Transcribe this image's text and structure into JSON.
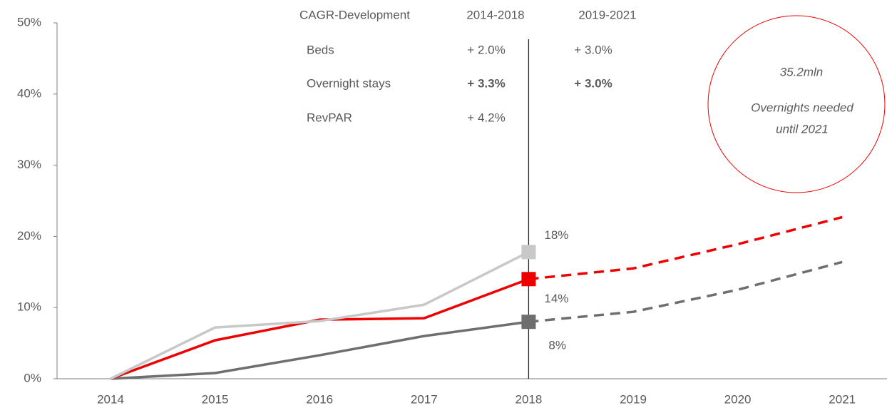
{
  "chart_data": {
    "type": "line",
    "categories": [
      "2014",
      "2015",
      "2016",
      "2017",
      "2018",
      "2019",
      "2020",
      "2021"
    ],
    "ylim": [
      0,
      50
    ],
    "yticks": [
      {
        "value": 0,
        "label": "0%"
      },
      {
        "value": 10,
        "label": "10%"
      },
      {
        "value": 20,
        "label": "20%"
      },
      {
        "value": 30,
        "label": "30%"
      },
      {
        "value": 40,
        "label": "40%"
      },
      {
        "value": 50,
        "label": "50%"
      }
    ],
    "dashed_from": "2018",
    "marker_at": "2018",
    "cagr_header": [
      "CAGR-Development",
      "2014-2018",
      "2019-2021"
    ],
    "series": [
      {
        "name": "Beds",
        "color": "#6e6e6e",
        "text_color": "#404040",
        "values": [
          0,
          0.8,
          3.3,
          6.0,
          8.0,
          9.4,
          12.5,
          16.4
        ],
        "value_labels": [
          null,
          null,
          null,
          null,
          "8%",
          null,
          null,
          null
        ],
        "cagr": [
          "+ 2.0%",
          "+ 3.0%"
        ]
      },
      {
        "name": "Overnight stays",
        "color": "#ee0000",
        "text_color": "#ee0000",
        "values": [
          0,
          5.4,
          8.3,
          8.5,
          14.0,
          15.5,
          18.9,
          22.7
        ],
        "value_labels": [
          null,
          null,
          null,
          null,
          "14%",
          null,
          null,
          null
        ],
        "cagr": [
          "+ 3.3%",
          "+ 3.0%"
        ]
      },
      {
        "name": "RevPAR",
        "color": "#c8c8c8",
        "text_color": "#b8b8b8",
        "values": [
          0,
          7.2,
          8.1,
          10.4,
          17.8,
          null,
          null,
          null
        ],
        "value_labels": [
          null,
          null,
          null,
          null,
          "18%",
          null,
          null,
          null
        ],
        "cagr": [
          "+ 4.2%"
        ]
      }
    ],
    "annotation": {
      "value": "35.2mln",
      "text": [
        "Overnights needed",
        "until 2021"
      ],
      "color": "#ee0000"
    }
  }
}
